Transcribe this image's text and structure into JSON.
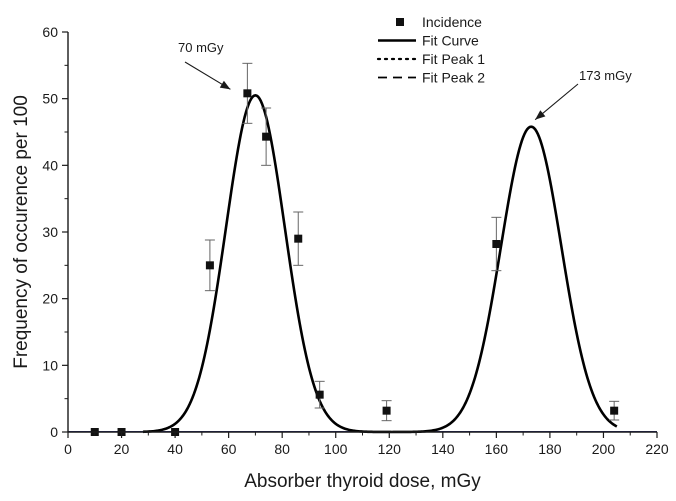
{
  "chart_data": {
    "type": "scatter",
    "title": "",
    "xlabel": "Absorber thyroid dose, mGy",
    "ylabel": "Frequency of occurence per 100",
    "xlim": [
      0,
      220
    ],
    "ylim": [
      0,
      60
    ],
    "x_ticks": [
      0,
      20,
      40,
      60,
      80,
      100,
      120,
      140,
      160,
      180,
      200,
      220
    ],
    "y_ticks": [
      0,
      10,
      20,
      30,
      40,
      50,
      60
    ],
    "grid": false,
    "legend_position": "top-right",
    "legend": [
      {
        "label": "Incidence",
        "style": "square-marker"
      },
      {
        "label": "Fit Curve",
        "style": "solid"
      },
      {
        "label": "Fit Peak 1",
        "style": "dotted"
      },
      {
        "label": "Fit Peak 2",
        "style": "dashed"
      }
    ],
    "series": [
      {
        "name": "Incidence",
        "kind": "points",
        "points": [
          {
            "x": 10,
            "y": 0,
            "err": 0
          },
          {
            "x": 20,
            "y": 0,
            "err": 0
          },
          {
            "x": 40,
            "y": 0,
            "err": 0
          },
          {
            "x": 53,
            "y": 25,
            "err": 3.8
          },
          {
            "x": 67,
            "y": 50.8,
            "err": 4.5
          },
          {
            "x": 74,
            "y": 44.3,
            "err": 4.3
          },
          {
            "x": 86,
            "y": 29,
            "err": 4.0
          },
          {
            "x": 94,
            "y": 5.6,
            "err": 2.0
          },
          {
            "x": 119,
            "y": 3.2,
            "err": 1.5
          },
          {
            "x": 160,
            "y": 28.2,
            "err": 4.0
          },
          {
            "x": 204,
            "y": 3.2,
            "err": 1.4
          }
        ]
      },
      {
        "name": "Fit Curve",
        "kind": "gaussian-sum",
        "x_range": [
          28,
          205
        ],
        "peaks": [
          {
            "center": 70,
            "amplitude": 50.5,
            "sigma": 11
          },
          {
            "center": 173,
            "amplitude": 45.8,
            "sigma": 11.3
          }
        ]
      }
    ],
    "annotations": [
      {
        "text": "70 mGy",
        "x": 70,
        "y": 50.5
      },
      {
        "text": "173 mGy",
        "x": 173,
        "y": 45.8
      }
    ],
    "colors": {
      "axis": "#1a1a1a",
      "curve": "#000000",
      "marker": "#111111",
      "baseline": "#2a2e8c",
      "errorbar": "#666666"
    }
  }
}
